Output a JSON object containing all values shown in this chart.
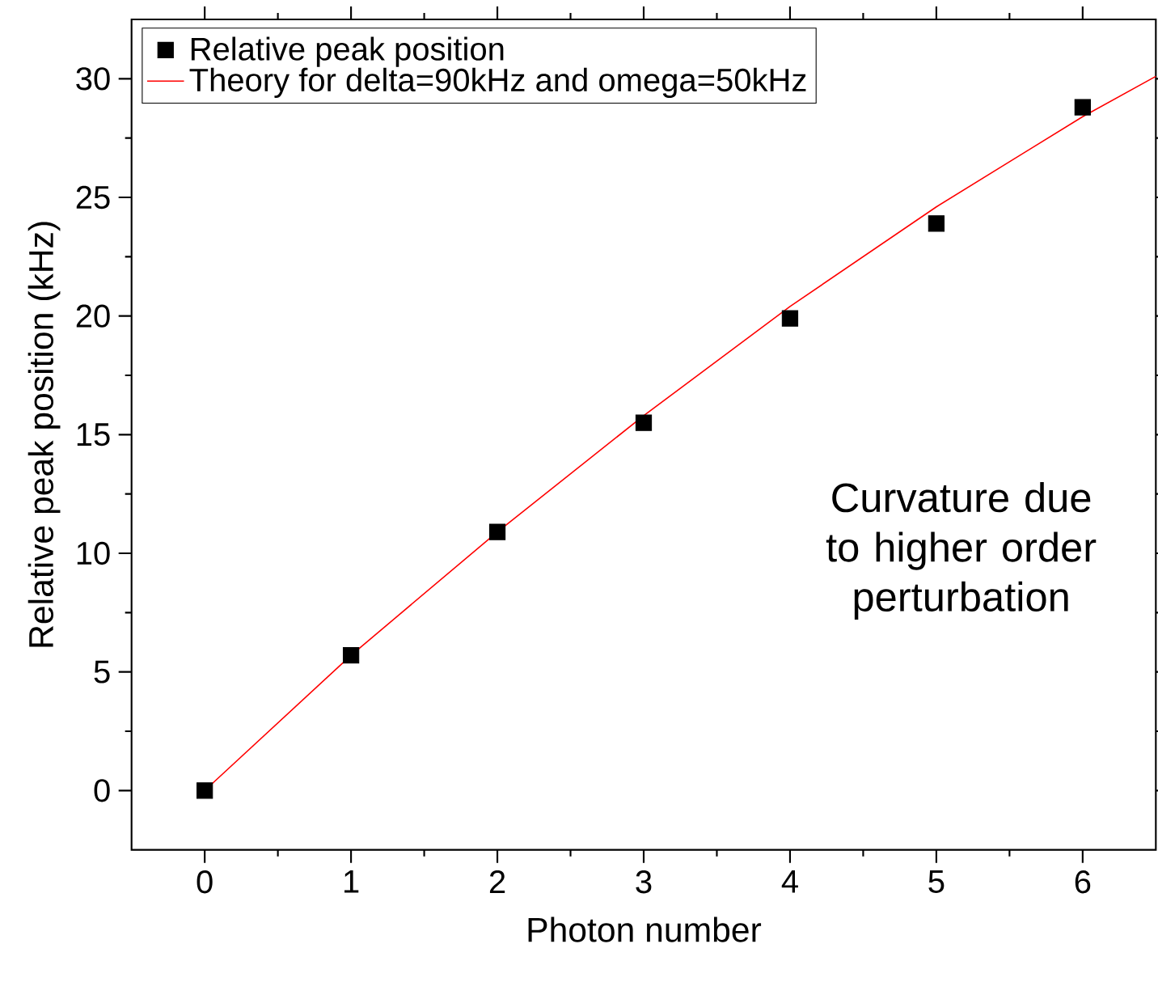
{
  "chart_data": {
    "type": "scatter",
    "xlabel": "Photon number",
    "ylabel": "Relative peak position (kHz)",
    "xlim": [
      -0.5,
      6.5
    ],
    "ylim": [
      -2.5,
      32.5
    ],
    "xticks": [
      0,
      1,
      2,
      3,
      4,
      5,
      6
    ],
    "yticks": [
      0,
      5,
      10,
      15,
      20,
      25,
      30
    ],
    "legend": "top left",
    "grid": false,
    "annotations": [
      "Curvature due to higher order perturbation"
    ],
    "series": [
      {
        "name": "Relative peak position",
        "marker": "square",
        "color": "#000000",
        "x": [
          0,
          1,
          2,
          3,
          4,
          5,
          6
        ],
        "values": [
          0,
          5.7,
          10.9,
          15.5,
          19.9,
          23.9,
          28.8
        ]
      },
      {
        "name": "Theory for delta=90kHz and omega=50kHz",
        "type": "line",
        "marker": "none",
        "line_style": "solid",
        "color": "#ff0000",
        "x": [
          0,
          1,
          2,
          3,
          4,
          5,
          6,
          6.5
        ],
        "values": [
          0,
          5.7,
          10.9,
          15.8,
          20.4,
          24.6,
          28.4,
          30.1
        ]
      }
    ]
  }
}
